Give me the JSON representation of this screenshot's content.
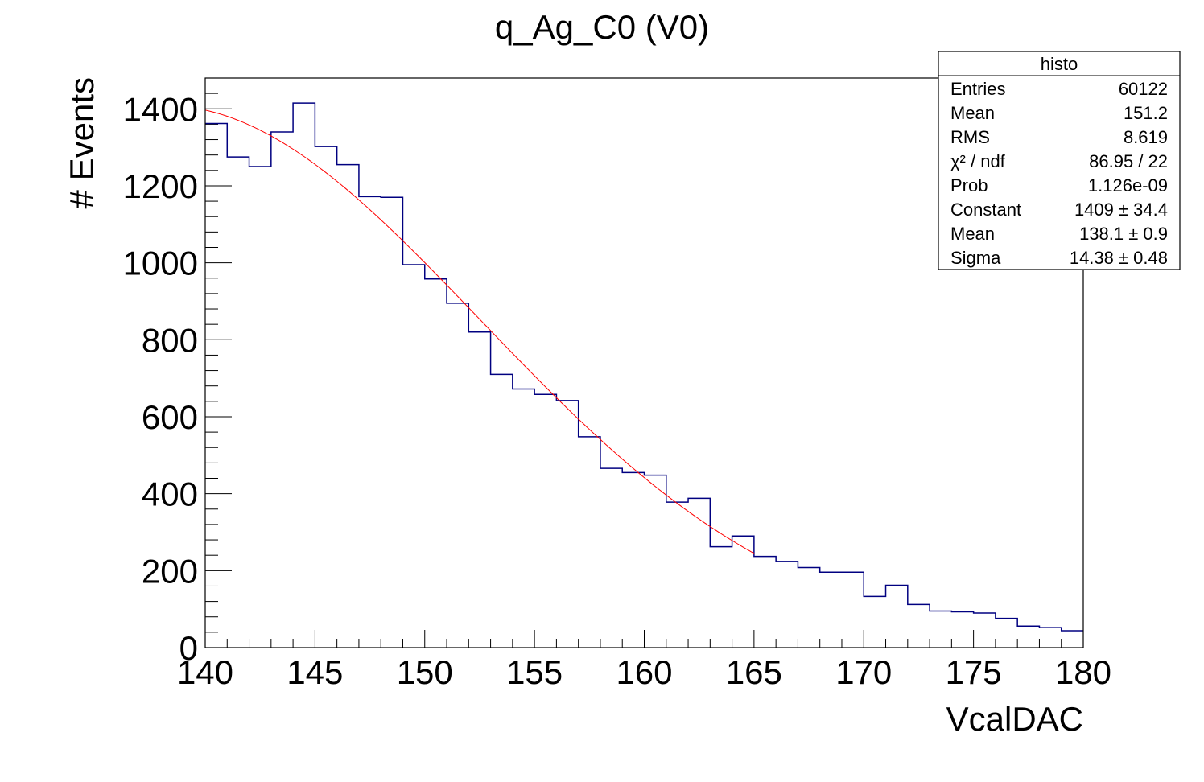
{
  "chart_data": {
    "type": "histogram",
    "title": "q_Ag_C0 (V0)",
    "xlabel": "VcalDAC",
    "ylabel": "# Events",
    "xlim": [
      140,
      180
    ],
    "ylim": [
      0,
      1480
    ],
    "x_ticks": [
      140,
      145,
      150,
      155,
      160,
      165,
      170,
      175,
      180
    ],
    "y_ticks": [
      0,
      200,
      400,
      600,
      800,
      1000,
      1200,
      1400
    ],
    "x_tick_labels": [
      "140",
      "145",
      "150",
      "155",
      "160",
      "165",
      "170",
      "175",
      "180"
    ],
    "y_tick_labels": [
      "0",
      "200",
      "400",
      "600",
      "800",
      "1000",
      "1200",
      "1400"
    ],
    "histogram": {
      "bin_edges_start": 140,
      "bin_width": 1,
      "values": [
        1362,
        1275,
        1250,
        1340,
        1415,
        1302,
        1255,
        1172,
        1170,
        995,
        958,
        895,
        820,
        710,
        672,
        658,
        642,
        548,
        466,
        455,
        448,
        378,
        388,
        262,
        290,
        237,
        224,
        208,
        196,
        196,
        133,
        162,
        112,
        95,
        93,
        90,
        76,
        56,
        52,
        44
      ],
      "line_color": "#000080"
    },
    "fit": {
      "function": "gaus",
      "constant": 1409,
      "mean": 138.1,
      "sigma": 14.38,
      "x_range": [
        140,
        165
      ],
      "line_color": "#ff0000"
    },
    "stats_box": {
      "title": "histo",
      "position": "top-right",
      "rows": [
        {
          "label": "Entries",
          "value": "60122"
        },
        {
          "label": "Mean",
          "value": "151.2"
        },
        {
          "label": "RMS",
          "value": "8.619"
        },
        {
          "label": "χ² / ndf",
          "value": "86.95 / 22"
        },
        {
          "label": "Prob",
          "value": "1.126e-09"
        },
        {
          "label": "Constant",
          "value": "1409 ± 34.4"
        },
        {
          "label": "Mean",
          "value": "138.1 ± 0.9"
        },
        {
          "label": "Sigma",
          "value": "14.38 ± 0.48"
        }
      ]
    }
  }
}
